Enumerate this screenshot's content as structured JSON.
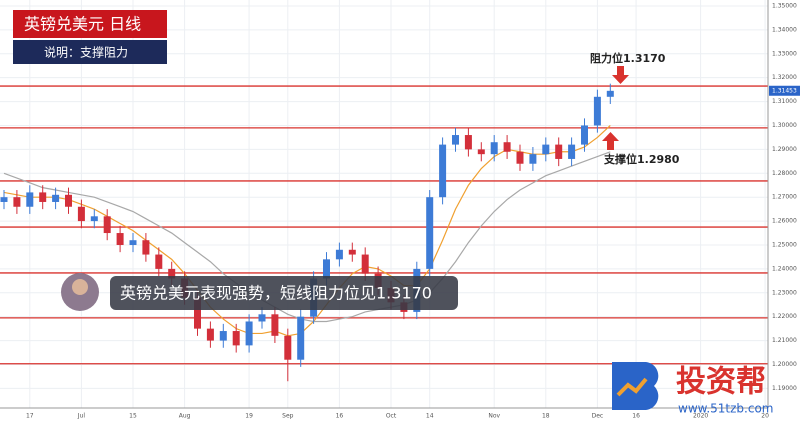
{
  "chart_data": {
    "type": "candlestick",
    "title": "英镑兑美元  日线",
    "subtitle": "说明：支撑阻力",
    "caption": "英镑兑美元表现强势，短线阻力位见1.3170",
    "annotations": [
      {
        "text": "阻力位1.3170"
      },
      {
        "text": "支撑位1.2980"
      }
    ],
    "categories": [
      null,
      null,
      "17",
      null,
      null,
      null,
      "Jul",
      null,
      null,
      null,
      "15",
      null,
      null,
      null,
      "Aug",
      null,
      null,
      null,
      null,
      "19",
      null,
      null,
      "Sep",
      null,
      null,
      null,
      "16",
      null,
      null,
      null,
      "Oct",
      null,
      null,
      "14",
      null,
      null,
      null,
      null,
      "Nov",
      null,
      null,
      null,
      "18",
      null,
      null,
      null,
      "Dec",
      null,
      null,
      "16",
      null,
      null,
      null,
      null,
      "2020",
      null,
      null,
      null,
      null,
      "20"
    ],
    "open": [
      1.268,
      1.27,
      1.266,
      1.272,
      1.268,
      1.271,
      1.266,
      1.26,
      1.262,
      1.255,
      1.25,
      1.252,
      1.246,
      1.24,
      1.236,
      1.228,
      1.215,
      1.21,
      1.214,
      1.208,
      1.218,
      1.221,
      1.212,
      1.202,
      1.22,
      1.236,
      1.244,
      1.248,
      1.246,
      1.238,
      1.232,
      1.226,
      1.222,
      1.24,
      1.27,
      1.292,
      1.296,
      1.29,
      1.288,
      1.293,
      1.289,
      1.284,
      1.288,
      1.292,
      1.286,
      1.292,
      1.3,
      1.312,
      null,
      null,
      null,
      null,
      null,
      null,
      null,
      null,
      null,
      null,
      null,
      null
    ],
    "high": [
      1.273,
      1.273,
      1.275,
      1.275,
      1.274,
      1.274,
      1.269,
      1.265,
      1.265,
      1.258,
      1.255,
      1.255,
      1.249,
      1.243,
      1.239,
      1.231,
      1.218,
      1.217,
      1.217,
      1.221,
      1.224,
      1.224,
      1.215,
      1.223,
      1.239,
      1.247,
      1.251,
      1.251,
      1.249,
      1.241,
      1.235,
      1.229,
      1.243,
      1.273,
      1.295,
      1.299,
      1.299,
      1.293,
      1.296,
      1.296,
      1.292,
      1.291,
      1.295,
      1.295,
      1.295,
      1.303,
      1.315,
      1.3175,
      null,
      null,
      null,
      null,
      null,
      null,
      null,
      null,
      null,
      null,
      null,
      null
    ],
    "low": [
      1.265,
      1.263,
      1.263,
      1.265,
      1.265,
      1.263,
      1.257,
      1.257,
      1.252,
      1.247,
      1.247,
      1.243,
      1.237,
      1.233,
      1.225,
      1.212,
      1.207,
      1.207,
      1.205,
      1.205,
      1.215,
      1.209,
      1.193,
      1.199,
      1.217,
      1.233,
      1.241,
      1.243,
      1.235,
      1.229,
      1.223,
      1.219,
      1.219,
      1.237,
      1.267,
      1.289,
      1.287,
      1.285,
      1.285,
      1.286,
      1.281,
      1.281,
      1.285,
      1.283,
      1.283,
      1.289,
      1.297,
      1.309,
      null,
      null,
      null,
      null,
      null,
      null,
      null,
      null,
      null,
      null,
      null,
      null
    ],
    "close": [
      1.27,
      1.266,
      1.272,
      1.268,
      1.271,
      1.266,
      1.26,
      1.262,
      1.255,
      1.25,
      1.252,
      1.246,
      1.24,
      1.236,
      1.228,
      1.215,
      1.21,
      1.214,
      1.208,
      1.218,
      1.221,
      1.212,
      1.202,
      1.22,
      1.236,
      1.244,
      1.248,
      1.246,
      1.238,
      1.232,
      1.226,
      1.222,
      1.24,
      1.27,
      1.292,
      1.296,
      1.29,
      1.288,
      1.293,
      1.289,
      1.284,
      1.288,
      1.292,
      1.286,
      1.292,
      1.3,
      1.312,
      1.3145,
      null,
      null,
      null,
      null,
      null,
      null,
      null,
      null,
      null,
      null,
      null,
      null
    ],
    "up_color": "#3d7bd6",
    "down_color": "#d32f3a",
    "series": [
      {
        "color": "#f0a030",
        "values": [
          1.272,
          1.271,
          1.27,
          1.27,
          1.27,
          1.269,
          1.267,
          1.265,
          1.262,
          1.259,
          1.256,
          1.252,
          1.248,
          1.244,
          1.238,
          1.231,
          1.224,
          1.219,
          1.215,
          1.213,
          1.213,
          1.214,
          1.212,
          1.213,
          1.218,
          1.225,
          1.232,
          1.238,
          1.241,
          1.24,
          1.237,
          1.233,
          1.233,
          1.24,
          1.252,
          1.265,
          1.275,
          1.282,
          1.287,
          1.29,
          1.289,
          1.288,
          1.288,
          1.289,
          1.289,
          1.291,
          1.295,
          1.3,
          null,
          null,
          null,
          null,
          null,
          null,
          null,
          null,
          null,
          null,
          null,
          null
        ]
      },
      {
        "color": "#a8a8a8",
        "values": [
          1.28,
          1.278,
          1.276,
          1.274,
          1.273,
          1.272,
          1.271,
          1.27,
          1.268,
          1.266,
          1.264,
          1.261,
          1.258,
          1.255,
          1.251,
          1.247,
          1.243,
          1.238,
          1.234,
          1.23,
          1.227,
          1.224,
          1.221,
          1.219,
          1.218,
          1.218,
          1.219,
          1.22,
          1.222,
          1.223,
          1.224,
          1.225,
          1.227,
          1.23,
          1.236,
          1.243,
          1.251,
          1.258,
          1.264,
          1.269,
          1.273,
          1.276,
          1.279,
          1.281,
          1.283,
          1.285,
          1.287,
          1.289,
          null,
          null,
          null,
          null,
          null,
          null,
          null,
          null,
          null,
          null,
          null,
          null
        ]
      }
    ],
    "levels": {
      "color": "#d9332e",
      "values": [
        1.3165,
        1.299,
        1.2768,
        1.2575,
        1.2383,
        1.2195,
        1.2003
      ]
    },
    "last_price": 1.31453,
    "ylim": [
      1.1818,
      1.3525
    ],
    "yticks": [
      {
        "value": 1.35,
        "label": "1.35000"
      },
      {
        "value": 1.34,
        "label": "1.34000"
      },
      {
        "value": 1.33,
        "label": "1.33000"
      },
      {
        "value": 1.32,
        "label": "1.32000"
      },
      {
        "value": 1.31,
        "label": "1.31000"
      },
      {
        "value": 1.3,
        "label": "1.30000"
      },
      {
        "value": 1.29,
        "label": "1.29000"
      },
      {
        "value": 1.28,
        "label": "1.28000"
      },
      {
        "value": 1.27,
        "label": "1.27000"
      },
      {
        "value": 1.26,
        "label": "1.26000"
      },
      {
        "value": 1.25,
        "label": "1.25000"
      },
      {
        "value": 1.24,
        "label": "1.24000"
      },
      {
        "value": 1.23,
        "label": "1.23000"
      },
      {
        "value": 1.22,
        "label": "1.22000"
      },
      {
        "value": 1.21,
        "label": "1.21000"
      },
      {
        "value": 1.2,
        "label": "1.20000"
      },
      {
        "value": 1.19,
        "label": "1.19000"
      }
    ],
    "grid": true
  },
  "brand": {
    "name": "投资帮",
    "url": "www.51tzb.com"
  }
}
